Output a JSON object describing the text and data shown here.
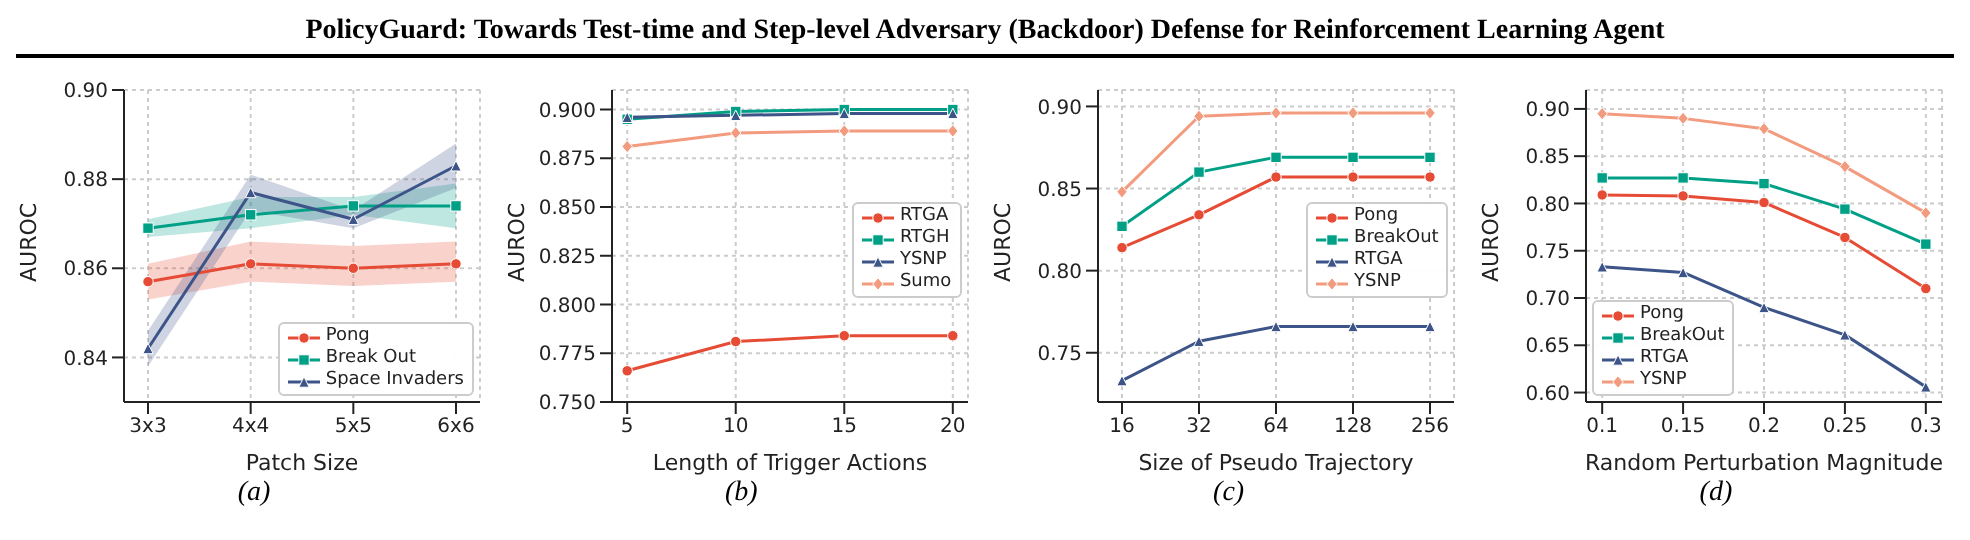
{
  "chart_data": [
    {
      "type": "line",
      "title": "PolicyGuard: Towards Test-time and Step-level Adversary (Backdoor) Defense for Reinforcement Learning Agent",
      "xlabel": "Patch Size",
      "ylabel": "AUROC",
      "annotations": [
        "(a)"
      ],
      "categories": [
        "3x3",
        "4x4",
        "5x5",
        "6x6"
      ],
      "ylim": [
        0.83,
        0.9
      ],
      "yticks": [
        {
          "value": 0.84,
          "label": "0.84"
        },
        {
          "value": 0.86,
          "label": "0.86"
        },
        {
          "value": 0.88,
          "label": "0.88"
        },
        {
          "value": 0.9,
          "label": "0.90"
        }
      ],
      "grid": true,
      "legend": "bottom right",
      "series": [
        {
          "name": "Pong",
          "color": "#e64b35",
          "marker": "circle",
          "values": [
            0.857,
            0.861,
            0.86,
            0.861
          ],
          "lower": [
            0.853,
            0.857,
            0.856,
            0.857
          ],
          "upper": [
            0.861,
            0.866,
            0.865,
            0.866
          ]
        },
        {
          "name": "Break Out",
          "color": "#00a087",
          "marker": "square",
          "values": [
            0.869,
            0.872,
            0.874,
            0.874
          ],
          "lower": [
            0.867,
            0.869,
            0.872,
            0.869
          ],
          "upper": [
            0.871,
            0.876,
            0.876,
            0.879
          ]
        },
        {
          "name": "Space Invaders",
          "color": "#3c5488",
          "marker": "triangle",
          "values": [
            0.842,
            0.877,
            0.871,
            0.883
          ],
          "lower": [
            0.838,
            0.873,
            0.869,
            0.878
          ],
          "upper": [
            0.846,
            0.881,
            0.873,
            0.888
          ]
        }
      ]
    },
    {
      "type": "line",
      "xlabel": "Length of Trigger Actions",
      "ylabel": "AUROC",
      "annotations": [
        "(b)"
      ],
      "x": [
        5,
        10,
        15,
        20
      ],
      "xlim": [
        4.3,
        20.7
      ],
      "xticks": [
        5,
        10,
        15,
        20
      ],
      "ylim": [
        0.75,
        0.91
      ],
      "yticks": [
        {
          "value": 0.75,
          "label": "0.750"
        },
        {
          "value": 0.775,
          "label": "0.775"
        },
        {
          "value": 0.8,
          "label": "0.800"
        },
        {
          "value": 0.825,
          "label": "0.825"
        },
        {
          "value": 0.85,
          "label": "0.850"
        },
        {
          "value": 0.875,
          "label": "0.875"
        },
        {
          "value": 0.9,
          "label": "0.900"
        }
      ],
      "grid": true,
      "legend": "right",
      "series": [
        {
          "name": "RTGA",
          "color": "#e64b35",
          "marker": "circle",
          "values": [
            0.766,
            0.781,
            0.784,
            0.784
          ]
        },
        {
          "name": "RTGH",
          "color": "#00a087",
          "marker": "square",
          "values": [
            0.895,
            0.899,
            0.9,
            0.9
          ]
        },
        {
          "name": "YSNP",
          "color": "#3c5488",
          "marker": "triangle",
          "values": [
            0.896,
            0.897,
            0.898,
            0.898
          ]
        },
        {
          "name": "Sumo",
          "color": "#f39b7f",
          "marker": "diamond",
          "values": [
            0.881,
            0.888,
            0.889,
            0.889
          ]
        }
      ]
    },
    {
      "type": "line",
      "xlabel": "Size of Pseudo Trajectory",
      "ylabel": "AUROC",
      "annotations": [
        "(c)"
      ],
      "categories": [
        "16",
        "32",
        "64",
        "128",
        "256"
      ],
      "ylim": [
        0.72,
        0.91
      ],
      "yticks": [
        {
          "value": 0.75,
          "label": "0.75"
        },
        {
          "value": 0.8,
          "label": "0.80"
        },
        {
          "value": 0.85,
          "label": "0.85"
        },
        {
          "value": 0.9,
          "label": "0.90"
        }
      ],
      "grid": true,
      "legend": "right",
      "series": [
        {
          "name": "Pong",
          "color": "#e64b35",
          "marker": "circle",
          "values": [
            0.814,
            0.834,
            0.857,
            0.857,
            0.857
          ]
        },
        {
          "name": "BreakOut",
          "color": "#00a087",
          "marker": "square",
          "values": [
            0.827,
            0.86,
            0.869,
            0.869,
            0.869
          ]
        },
        {
          "name": "RTGA",
          "color": "#3c5488",
          "marker": "triangle",
          "values": [
            0.733,
            0.757,
            0.766,
            0.766,
            0.766
          ]
        },
        {
          "name": "YSNP",
          "color": "#f39b7f",
          "marker": "diamond",
          "values": [
            0.848,
            0.894,
            0.896,
            0.896,
            0.896
          ]
        }
      ]
    },
    {
      "type": "line",
      "xlabel": "Random Perturbation Magnitude",
      "ylabel": "AUROC",
      "annotations": [
        "(d)"
      ],
      "x": [
        0.1,
        0.15,
        0.2,
        0.25,
        0.3
      ],
      "xlim": [
        0.09,
        0.31
      ],
      "xticks": [
        0.1,
        0.15,
        0.2,
        0.25,
        0.3
      ],
      "ylim": [
        0.59,
        0.92
      ],
      "yticks": [
        {
          "value": 0.6,
          "label": "0.60"
        },
        {
          "value": 0.65,
          "label": "0.65"
        },
        {
          "value": 0.7,
          "label": "0.70"
        },
        {
          "value": 0.75,
          "label": "0.75"
        },
        {
          "value": 0.8,
          "label": "0.80"
        },
        {
          "value": 0.85,
          "label": "0.85"
        },
        {
          "value": 0.9,
          "label": "0.90"
        }
      ],
      "grid": true,
      "legend": "bottom left",
      "series": [
        {
          "name": "Pong",
          "color": "#e64b35",
          "marker": "circle",
          "values": [
            0.809,
            0.808,
            0.801,
            0.764,
            0.71
          ]
        },
        {
          "name": "BreakOut",
          "color": "#00a087",
          "marker": "square",
          "values": [
            0.827,
            0.827,
            0.821,
            0.794,
            0.757
          ]
        },
        {
          "name": "RTGA",
          "color": "#3c5488",
          "marker": "triangle",
          "values": [
            0.733,
            0.727,
            0.69,
            0.661,
            0.606
          ]
        },
        {
          "name": "YSNP",
          "color": "#f39b7f",
          "marker": "diamond",
          "values": [
            0.895,
            0.89,
            0.879,
            0.839,
            0.79
          ]
        }
      ]
    }
  ]
}
